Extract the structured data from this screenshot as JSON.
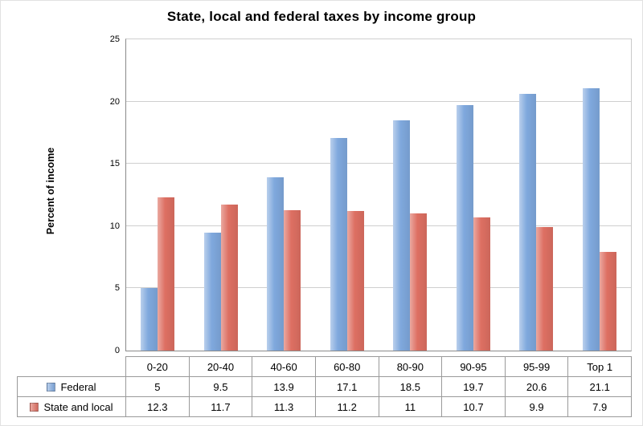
{
  "title": "State, local and federal taxes by income group",
  "ylabel": "Percent of income",
  "colors": {
    "federal": "#7fa8dd",
    "state_local": "#dd6f62"
  },
  "chart_data": {
    "type": "bar",
    "title": "State, local and federal taxes by income group",
    "xlabel": "",
    "ylabel": "Percent of income",
    "categories": [
      "0-20",
      "20-40",
      "40-60",
      "60-80",
      "80-90",
      "90-95",
      "95-99",
      "Top 1"
    ],
    "series": [
      {
        "name": "Federal",
        "values": [
          5,
          9.5,
          13.9,
          17.1,
          18.5,
          19.7,
          20.6,
          21.1
        ]
      },
      {
        "name": "State and local",
        "values": [
          12.3,
          11.7,
          11.3,
          11.2,
          11,
          10.7,
          9.9,
          7.9
        ]
      }
    ],
    "ylim": [
      0,
      25
    ],
    "yticks": [
      0,
      5,
      10,
      15,
      20,
      25
    ],
    "grid": true,
    "legend_position": "table-left"
  }
}
